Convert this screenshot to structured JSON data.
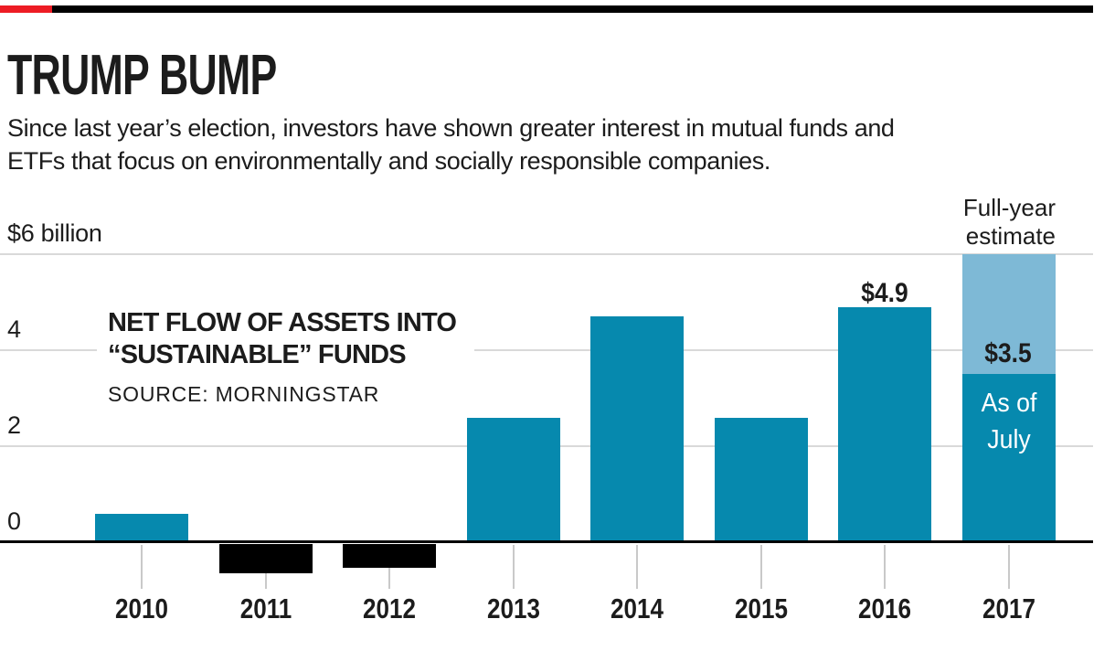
{
  "page": {
    "accent_red": "#ed1c24",
    "accent_black": "#000000",
    "text_color": "#1c1c1c",
    "background": "#ffffff"
  },
  "header": {
    "title": "TRUMP BUMP",
    "subtitle_lines": [
      "Since last year’s election, investors have shown greater interest in mutual funds and",
      "ETFs that focus on environmentally and socially responsible companies."
    ]
  },
  "chart_data": {
    "type": "bar",
    "title": "TRUMP BUMP",
    "subtitle": "Since last year’s election, investors have shown greater interest in mutual funds and ETFs that focus on environmentally and socially responsible companies.",
    "annotation_lines": [
      "NET FLOW OF ASSETS INTO",
      "“SUSTAINABLE” FUNDS"
    ],
    "source": "SOURCE: MORNINGSTAR",
    "categories": [
      "2010",
      "2011",
      "2012",
      "2013",
      "2014",
      "2015",
      "2016",
      "2017"
    ],
    "series": [
      {
        "name": "As of July",
        "color": "#0689ae",
        "values": [
          0.6,
          -0.6,
          -0.5,
          2.6,
          4.7,
          2.6,
          4.9,
          3.5
        ]
      },
      {
        "name": "Full-year estimate",
        "color": "#7eb9d6",
        "values": [
          null,
          null,
          null,
          null,
          null,
          null,
          null,
          6.0
        ]
      }
    ],
    "negative_color": "#000000",
    "value_labels": {
      "label_2016": "$4.9",
      "label_2017": "$3.5"
    },
    "notes": {
      "estimate_lines": [
        "Full-year",
        "estimate"
      ],
      "asof_lines": [
        "As of",
        "July"
      ]
    },
    "y_axis": {
      "ticks": [
        {
          "value": 6,
          "label": "$6 billion"
        },
        {
          "value": 4,
          "label": "4"
        },
        {
          "value": 2,
          "label": "2"
        },
        {
          "value": 0,
          "label": "0"
        }
      ],
      "ylim": [
        -1,
        6.3
      ],
      "grid": true
    },
    "legend_position": "none",
    "grid_color": "#d9d9d9",
    "tick_color": "#c9c9c9"
  }
}
